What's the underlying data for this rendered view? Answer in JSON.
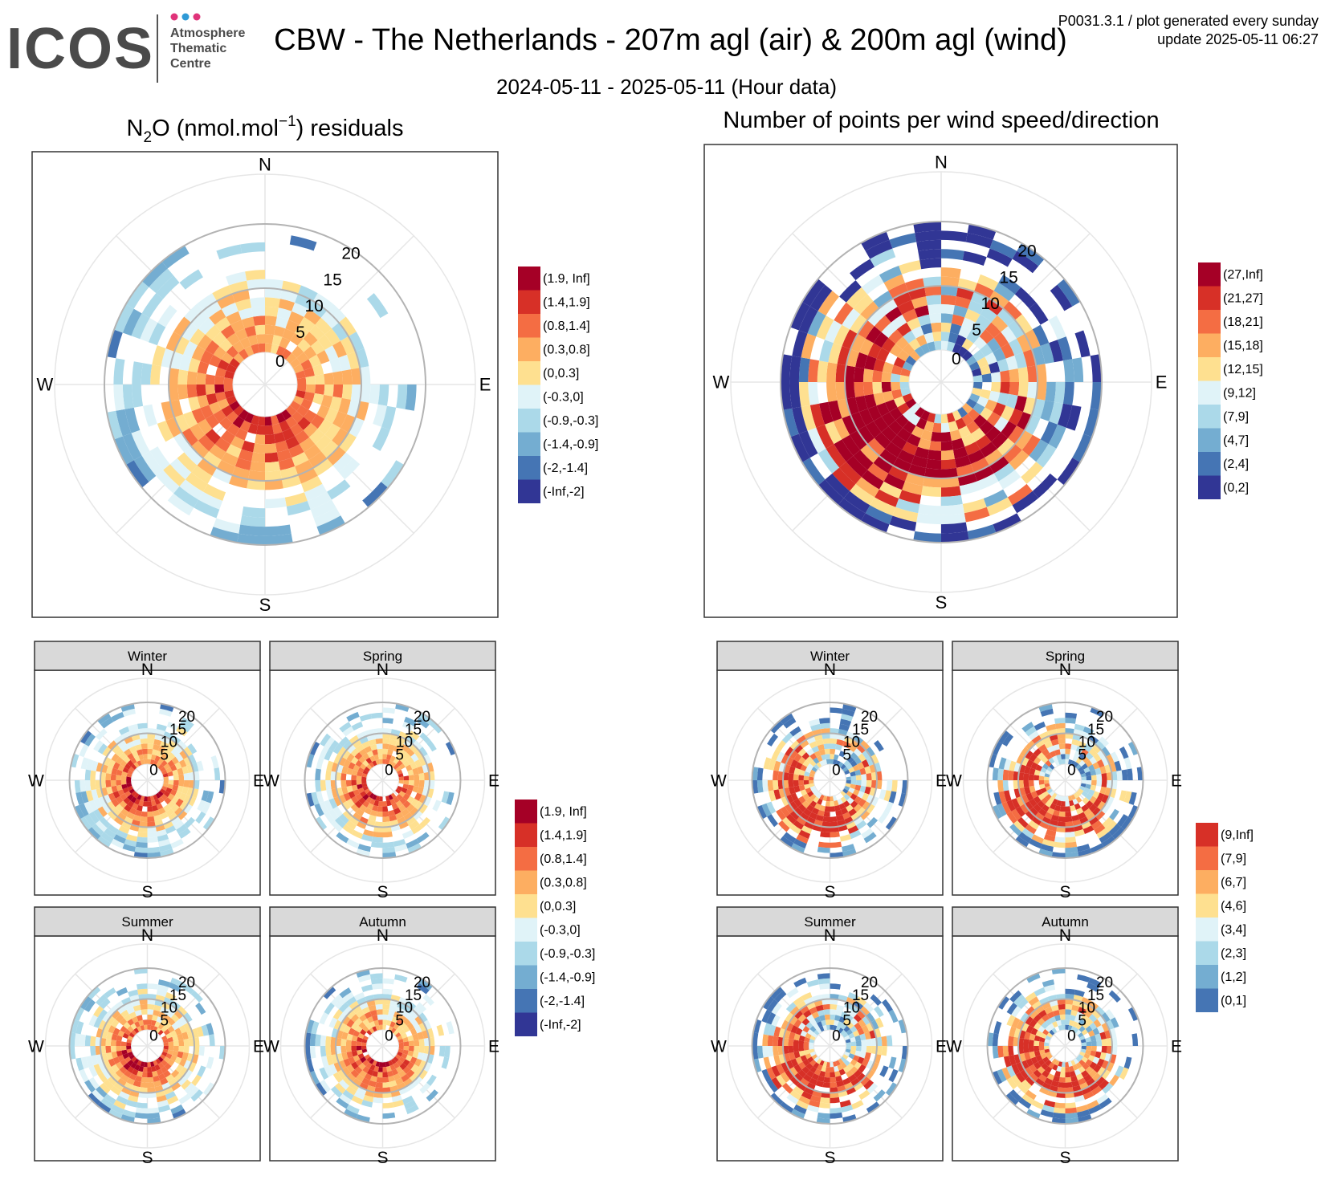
{
  "header": {
    "logo_text": "ICOS",
    "logo_sub": [
      "Atmosphere",
      "Thematic",
      "Centre"
    ],
    "title": "CBW - The Netherlands - 207m agl (air) & 200m agl (wind)",
    "period": "2024-05-11 - 2025-05-11 (Hour data)",
    "meta_line1": "P0031.3.1 / plot generated every sunday",
    "meta_line2": "update  2025-05-11 06:27"
  },
  "colors": {
    "scale10": [
      "#a50026",
      "#d73027",
      "#f46d43",
      "#fdae61",
      "#fee090",
      "#e0f3f8",
      "#abd9e9",
      "#74add1",
      "#4575b4",
      "#313695"
    ],
    "scale8": [
      "#d73027",
      "#f46d43",
      "#fdae61",
      "#fee090",
      "#e0f3f8",
      "#abd9e9",
      "#74add1",
      "#4575b4"
    ],
    "strip_bg": "#d9d9d9",
    "ring_dark": "#b3b3b3",
    "ring_light": "#e6e6e6"
  },
  "compass": [
    "N",
    "E",
    "S",
    "W"
  ],
  "chart_data": [
    {
      "type": "polar-heatmap",
      "title": "N2O (nmol.mol-1) residuals",
      "title_parts": {
        "pre": "N",
        "sub": "2",
        "mid": "O (nmol.mol",
        "sup": "−1",
        "post": ") residuals"
      },
      "radial_ticks": [
        "0",
        "5",
        "10",
        "15",
        "20"
      ],
      "radial_range": [
        0,
        20
      ],
      "legend": [
        "(1.9, Inf]",
        "(1.4,1.9]",
        "(0.8,1.4]",
        "(0.3,0.8]",
        "(0,0.3]",
        "(-0.3,0]",
        "(-0.9,-0.3]",
        "(-1.4,-0.9]",
        "(-2,-1.4]",
        "(-Inf,-2]"
      ]
    },
    {
      "type": "polar-heatmap",
      "title": "Number of points per wind speed/direction",
      "radial_ticks": [
        "0",
        "5",
        "10",
        "15",
        "20"
      ],
      "radial_range": [
        0,
        20
      ],
      "legend": [
        "(27,Inf]",
        "(21,27]",
        "(18,21]",
        "(15,18]",
        "(12,15]",
        "(9,12]",
        "(7,9]",
        "(4,7]",
        "(2,4]",
        "(0,2]"
      ]
    },
    {
      "type": "polar-heatmap",
      "facets": [
        "Winter",
        "Spring",
        "Summer",
        "Autumn"
      ],
      "quantity": "N2O residuals by season",
      "legend": [
        "(1.9, Inf]",
        "(1.4,1.9]",
        "(0.8,1.4]",
        "(0.3,0.8]",
        "(0,0.3]",
        "(-0.3,0]",
        "(-0.9,-0.3]",
        "(-1.4,-0.9]",
        "(-2,-1.4]",
        "(-Inf,-2]"
      ]
    },
    {
      "type": "polar-heatmap",
      "facets": [
        "Winter",
        "Spring",
        "Summer",
        "Autumn"
      ],
      "quantity": "Number of points by season",
      "legend": [
        "(9,Inf]",
        "(7,9]",
        "(6,7]",
        "(4,6]",
        "(3,4]",
        "(2,3]",
        "(1,2]",
        "(0,1]"
      ]
    }
  ]
}
